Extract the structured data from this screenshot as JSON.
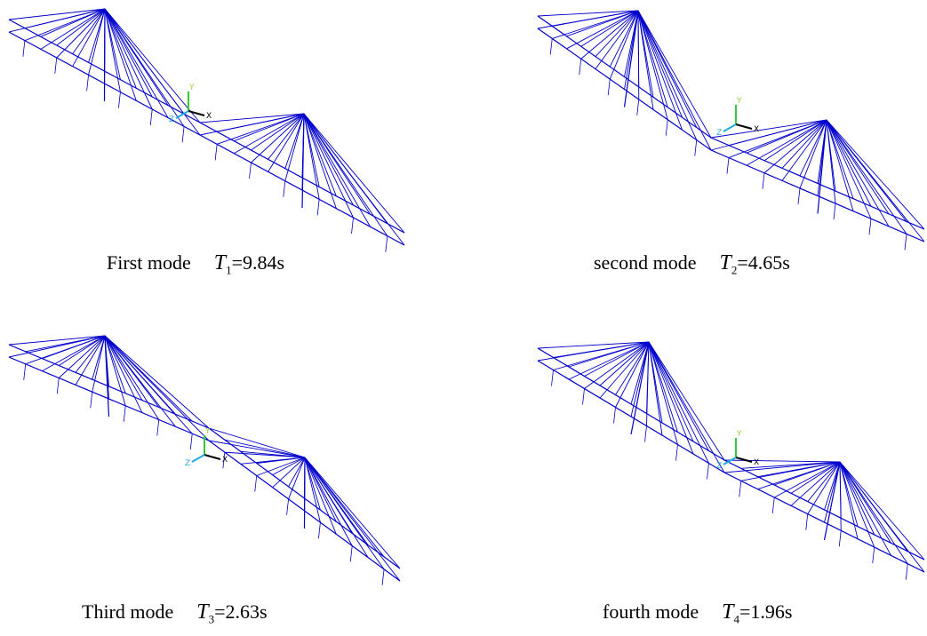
{
  "panels": [
    {
      "mode": "First mode",
      "symbol": "T",
      "subscript": "1",
      "period": "=9.84s"
    },
    {
      "mode": "second mode",
      "symbol": "T",
      "subscript": "2",
      "period": "=4.65s"
    },
    {
      "mode": "Third mode",
      "symbol": "T",
      "subscript": "3",
      "period": "=2.63s"
    },
    {
      "mode": "fourth mode",
      "symbol": "T",
      "subscript": "4",
      "period": "=1.96s"
    }
  ],
  "triad": {
    "y": "Y",
    "x": "X",
    "z": "Z"
  }
}
